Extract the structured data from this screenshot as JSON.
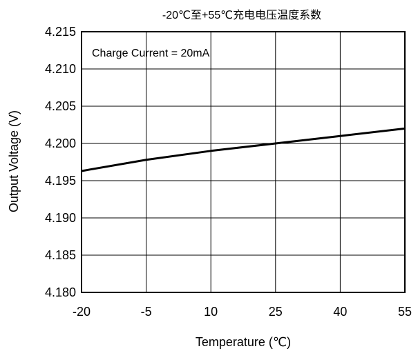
{
  "chart_data": {
    "type": "line",
    "title": "-20℃至+55℃充电电压温度系数",
    "xlabel": "Temperature (℃)",
    "ylabel": "Output Voltage (V)",
    "annotation": "Charge Current = 20mA",
    "x_ticks": [
      "-20",
      "-5",
      "10",
      "25",
      "40",
      "55"
    ],
    "y_ticks": [
      "4.180",
      "4.185",
      "4.190",
      "4.195",
      "4.200",
      "4.205",
      "4.210",
      "4.215"
    ],
    "xlim": [
      -20,
      55
    ],
    "ylim": [
      4.18,
      4.215
    ],
    "grid": true,
    "series": [
      {
        "color": "#000000",
        "x": [
          -20,
          -5,
          10,
          25,
          40,
          55
        ],
        "y": [
          4.1963,
          4.1978,
          4.199,
          4.2,
          4.201,
          4.202
        ]
      }
    ]
  }
}
